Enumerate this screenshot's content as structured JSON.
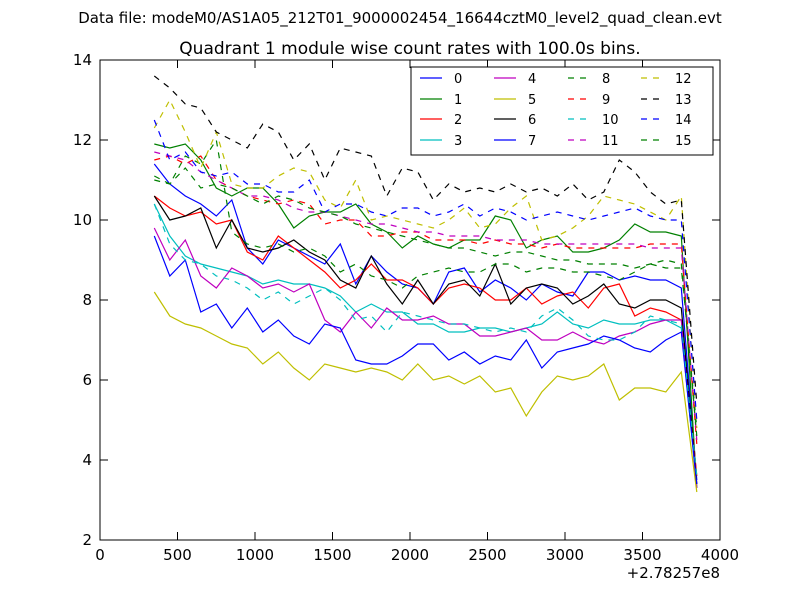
{
  "chart_data": {
    "type": "line",
    "suptitle": "Data file: modeM0/AS1A05_212T01_9000002454_16644cztM0_level2_quad_clean.evt",
    "title": "Quadrant 1 module wise count rates with 100.0s bins.",
    "xlabel": "",
    "ylabel": "",
    "x_offset_label": "+2.78257e8",
    "xlim": [
      0,
      4000
    ],
    "ylim": [
      2,
      14
    ],
    "xticks": [
      0,
      500,
      1000,
      1500,
      2000,
      2500,
      3000,
      3500,
      4000
    ],
    "xtick_labels": [
      "0",
      "500",
      "1000",
      "1500",
      "2000",
      "2500",
      "3000",
      "3500",
      "4000"
    ],
    "yticks": [
      2,
      4,
      6,
      8,
      10,
      12,
      14
    ],
    "ytick_labels": [
      "2",
      "4",
      "6",
      "8",
      "10",
      "12",
      "14"
    ],
    "grid": false,
    "legend_position": "top-right",
    "x": [
      350,
      450,
      550,
      650,
      750,
      850,
      950,
      1050,
      1150,
      1250,
      1350,
      1450,
      1550,
      1650,
      1750,
      1850,
      1950,
      2050,
      2150,
      2250,
      2350,
      2450,
      2550,
      2650,
      2750,
      2850,
      2950,
      3050,
      3150,
      3250,
      3350,
      3450,
      3550,
      3650,
      3750,
      3850
    ],
    "series": [
      {
        "name": "0",
        "color": "#0000ff",
        "dash": "solid",
        "values": [
          11.4,
          10.9,
          10.6,
          10.4,
          10.1,
          10.5,
          9.3,
          8.9,
          9.5,
          9.3,
          9.1,
          8.9,
          9.4,
          8.4,
          9.1,
          8.7,
          8.4,
          8.3,
          7.9,
          8.7,
          8.8,
          8.2,
          8.5,
          8.3,
          8.0,
          8.4,
          8.2,
          8.1,
          8.7,
          8.7,
          8.5,
          8.6,
          8.5,
          8.5,
          8.3,
          3.5
        ]
      },
      {
        "name": "1",
        "color": "#008000",
        "dash": "solid",
        "values": [
          11.9,
          11.8,
          11.9,
          11.5,
          10.8,
          10.6,
          10.8,
          10.8,
          10.4,
          9.8,
          10.1,
          10.2,
          10.2,
          10.4,
          9.9,
          9.7,
          9.3,
          9.6,
          9.4,
          9.3,
          9.5,
          9.5,
          10.1,
          10.0,
          9.3,
          9.5,
          9.6,
          9.2,
          9.2,
          9.3,
          9.5,
          9.9,
          9.7,
          9.7,
          9.6,
          3.3
        ]
      },
      {
        "name": "2",
        "color": "#ff0000",
        "dash": "solid",
        "values": [
          10.6,
          10.3,
          10.1,
          10.2,
          9.9,
          10.0,
          9.2,
          9.0,
          9.6,
          9.3,
          9.0,
          8.7,
          8.3,
          8.5,
          8.9,
          8.5,
          8.5,
          8.3,
          7.9,
          8.3,
          8.4,
          8.3,
          8.0,
          8.0,
          8.3,
          7.9,
          8.1,
          8.2,
          7.8,
          8.3,
          8.4,
          7.6,
          7.8,
          7.7,
          7.5,
          3.6
        ]
      },
      {
        "name": "3",
        "color": "#00bfbf",
        "dash": "solid",
        "values": [
          10.4,
          9.6,
          9.1,
          8.9,
          8.8,
          8.7,
          8.6,
          8.4,
          8.5,
          8.4,
          8.4,
          8.3,
          8.1,
          7.7,
          7.9,
          7.7,
          7.7,
          7.4,
          7.4,
          7.2,
          7.2,
          7.3,
          7.3,
          7.2,
          7.3,
          7.4,
          7.7,
          7.4,
          7.3,
          7.5,
          7.4,
          7.4,
          7.5,
          7.5,
          7.3,
          3.3
        ]
      },
      {
        "name": "4",
        "color": "#bf00bf",
        "dash": "solid",
        "values": [
          9.8,
          9.0,
          9.5,
          8.6,
          8.3,
          8.8,
          8.6,
          8.3,
          8.4,
          8.2,
          8.4,
          7.5,
          7.2,
          7.7,
          7.3,
          7.8,
          7.5,
          7.5,
          7.6,
          7.4,
          7.4,
          7.1,
          7.1,
          7.2,
          7.3,
          7.0,
          7.0,
          7.2,
          7.0,
          6.9,
          7.1,
          7.2,
          7.4,
          7.5,
          7.5,
          3.3
        ]
      },
      {
        "name": "5",
        "color": "#bfbf00",
        "dash": "solid",
        "values": [
          8.2,
          7.6,
          7.4,
          7.3,
          7.1,
          6.9,
          6.8,
          6.4,
          6.7,
          6.3,
          6.0,
          6.4,
          6.3,
          6.2,
          6.3,
          6.2,
          6.0,
          6.4,
          6.0,
          6.1,
          5.9,
          6.1,
          5.7,
          5.8,
          5.1,
          5.7,
          6.1,
          6.0,
          6.1,
          6.4,
          5.5,
          5.8,
          5.8,
          5.7,
          6.2,
          3.2
        ]
      },
      {
        "name": "6",
        "color": "#000000",
        "dash": "solid",
        "values": [
          10.6,
          10.0,
          10.1,
          10.3,
          9.3,
          10.0,
          9.3,
          9.2,
          9.3,
          9.5,
          9.2,
          9.0,
          8.5,
          8.3,
          9.1,
          8.4,
          7.9,
          8.5,
          7.9,
          8.4,
          8.5,
          8.1,
          8.9,
          7.9,
          8.3,
          8.4,
          8.3,
          7.9,
          8.1,
          8.4,
          7.9,
          7.8,
          8.0,
          8.0,
          7.8,
          3.4
        ]
      },
      {
        "name": "7",
        "color": "#0000ff",
        "dash": "solid",
        "values": [
          9.6,
          8.6,
          9.0,
          7.7,
          7.9,
          7.3,
          7.8,
          7.2,
          7.5,
          7.1,
          6.9,
          7.4,
          7.3,
          6.5,
          6.4,
          6.4,
          6.6,
          6.9,
          6.9,
          6.5,
          6.7,
          6.4,
          6.6,
          6.5,
          7.0,
          6.3,
          6.7,
          6.8,
          6.9,
          7.1,
          7.0,
          6.8,
          6.7,
          7.0,
          7.2,
          3.4
        ]
      },
      {
        "name": "8",
        "color": "#008000",
        "dash": "dashed",
        "values": [
          11.1,
          10.9,
          11.6,
          11.4,
          12.0,
          9.7,
          9.4,
          9.3,
          9.4,
          9.2,
          9.3,
          9.1,
          8.7,
          8.9,
          8.6,
          8.5,
          8.3,
          8.6,
          8.7,
          8.8,
          8.7,
          8.7,
          8.9,
          8.9,
          8.7,
          8.8,
          8.8,
          8.7,
          8.7,
          8.6,
          8.5,
          8.7,
          8.9,
          8.8,
          8.8,
          4.8
        ]
      },
      {
        "name": "9",
        "color": "#ff0000",
        "dash": "dashed",
        "values": [
          11.5,
          11.6,
          11.4,
          11.6,
          11.0,
          10.8,
          10.6,
          10.5,
          10.4,
          10.5,
          10.4,
          9.9,
          10.0,
          10.0,
          9.6,
          9.6,
          9.7,
          9.7,
          9.5,
          9.5,
          9.5,
          9.4,
          9.5,
          9.4,
          9.4,
          9.3,
          9.4,
          9.3,
          9.3,
          9.3,
          9.3,
          9.3,
          9.4,
          9.4,
          9.4,
          4.4
        ]
      },
      {
        "name": "10",
        "color": "#00bfbf",
        "dash": "dashed",
        "values": [
          10.4,
          9.4,
          9.0,
          8.9,
          8.6,
          8.5,
          8.3,
          8.0,
          8.2,
          7.9,
          8.1,
          8.3,
          8.0,
          7.5,
          7.6,
          7.2,
          7.7,
          7.6,
          7.5,
          7.4,
          7.4,
          7.3,
          7.2,
          7.3,
          7.2,
          7.6,
          7.8,
          7.5,
          7.1,
          7.0,
          7.0,
          7.2,
          7.6,
          7.5,
          7.4,
          3.6
        ]
      },
      {
        "name": "11",
        "color": "#bf00bf",
        "dash": "dashed",
        "values": [
          11.7,
          11.6,
          11.5,
          11.2,
          11.0,
          10.8,
          10.6,
          10.6,
          10.5,
          10.3,
          10.2,
          10.2,
          10.1,
          10.0,
          9.9,
          9.9,
          9.8,
          9.7,
          9.7,
          9.6,
          9.6,
          9.6,
          9.5,
          9.5,
          9.5,
          9.4,
          9.4,
          9.4,
          9.4,
          9.4,
          9.4,
          9.4,
          9.3,
          9.3,
          9.3,
          4.5
        ]
      },
      {
        "name": "12",
        "color": "#bfbf00",
        "dash": "dashed",
        "values": [
          12.3,
          13.0,
          12.2,
          11.3,
          12.2,
          10.9,
          10.8,
          10.8,
          11.1,
          11.3,
          11.2,
          10.5,
          10.3,
          11.0,
          10.0,
          10.1,
          10.0,
          9.9,
          9.8,
          10.0,
          10.3,
          9.8,
          9.9,
          10.3,
          10.6,
          9.5,
          9.6,
          9.8,
          10.1,
          10.6,
          10.5,
          10.4,
          10.2,
          10.0,
          10.6,
          4.8
        ]
      },
      {
        "name": "13",
        "color": "#000000",
        "dash": "dashed",
        "values": [
          13.6,
          13.3,
          12.9,
          12.8,
          12.2,
          12.0,
          11.8,
          12.4,
          12.2,
          11.5,
          11.9,
          11.0,
          11.8,
          11.7,
          11.6,
          10.6,
          11.3,
          11.2,
          10.5,
          10.9,
          10.7,
          10.8,
          10.7,
          10.9,
          10.7,
          10.8,
          10.6,
          10.9,
          10.5,
          10.7,
          11.5,
          11.2,
          10.7,
          10.4,
          10.5,
          5.4
        ]
      },
      {
        "name": "14",
        "color": "#0000ff",
        "dash": "dashed",
        "values": [
          12.5,
          11.5,
          11.7,
          11.2,
          11.1,
          11.2,
          10.9,
          10.9,
          10.7,
          10.7,
          11.0,
          10.2,
          10.4,
          10.4,
          10.2,
          10.1,
          10.3,
          10.3,
          10.1,
          10.2,
          10.4,
          10.1,
          10.3,
          10.2,
          10.0,
          10.1,
          10.2,
          10.1,
          10.0,
          10.1,
          10.2,
          10.3,
          10.1,
          10.0,
          10.0,
          5.0
        ]
      },
      {
        "name": "15",
        "color": "#008000",
        "dash": "dashed",
        "values": [
          11.0,
          10.9,
          11.3,
          10.8,
          10.9,
          10.8,
          10.6,
          10.4,
          10.6,
          10.5,
          10.3,
          10.2,
          10.1,
          9.9,
          9.8,
          9.7,
          9.6,
          9.5,
          9.4,
          9.3,
          9.3,
          9.2,
          9.1,
          9.2,
          9.2,
          9.1,
          9.0,
          9.0,
          8.9,
          8.9,
          8.9,
          8.8,
          8.9,
          9.0,
          8.9,
          4.6
        ]
      }
    ]
  }
}
